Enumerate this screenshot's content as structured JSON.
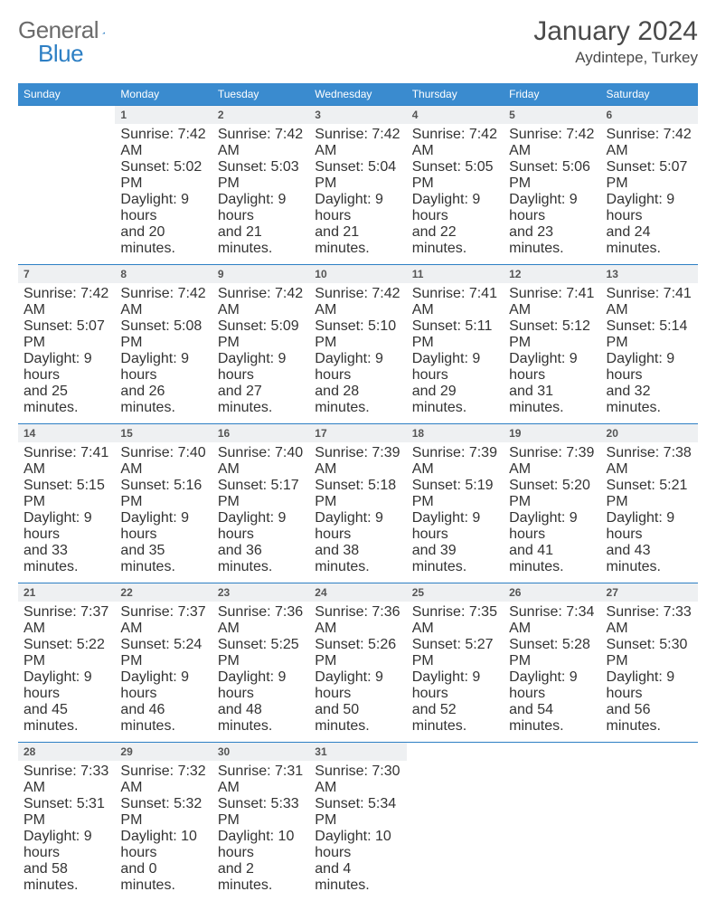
{
  "brand": {
    "part1": "General",
    "part2": "Blue"
  },
  "title": "January 2024",
  "location": "Aydintepe, Turkey",
  "colors": {
    "header_bg": "#3a8bcf",
    "header_text": "#ffffff",
    "daynum_bg": "#eef0f2",
    "border": "#2d7fc4",
    "text": "#333333",
    "logo_gray": "#6b6b6b",
    "logo_blue": "#2d7fc4"
  },
  "dayNames": [
    "Sunday",
    "Monday",
    "Tuesday",
    "Wednesday",
    "Thursday",
    "Friday",
    "Saturday"
  ],
  "weeks": [
    [
      null,
      {
        "n": "1",
        "sr": "Sunrise: 7:42 AM",
        "ss": "Sunset: 5:02 PM",
        "d1": "Daylight: 9 hours",
        "d2": "and 20 minutes."
      },
      {
        "n": "2",
        "sr": "Sunrise: 7:42 AM",
        "ss": "Sunset: 5:03 PM",
        "d1": "Daylight: 9 hours",
        "d2": "and 21 minutes."
      },
      {
        "n": "3",
        "sr": "Sunrise: 7:42 AM",
        "ss": "Sunset: 5:04 PM",
        "d1": "Daylight: 9 hours",
        "d2": "and 21 minutes."
      },
      {
        "n": "4",
        "sr": "Sunrise: 7:42 AM",
        "ss": "Sunset: 5:05 PM",
        "d1": "Daylight: 9 hours",
        "d2": "and 22 minutes."
      },
      {
        "n": "5",
        "sr": "Sunrise: 7:42 AM",
        "ss": "Sunset: 5:06 PM",
        "d1": "Daylight: 9 hours",
        "d2": "and 23 minutes."
      },
      {
        "n": "6",
        "sr": "Sunrise: 7:42 AM",
        "ss": "Sunset: 5:07 PM",
        "d1": "Daylight: 9 hours",
        "d2": "and 24 minutes."
      }
    ],
    [
      {
        "n": "7",
        "sr": "Sunrise: 7:42 AM",
        "ss": "Sunset: 5:07 PM",
        "d1": "Daylight: 9 hours",
        "d2": "and 25 minutes."
      },
      {
        "n": "8",
        "sr": "Sunrise: 7:42 AM",
        "ss": "Sunset: 5:08 PM",
        "d1": "Daylight: 9 hours",
        "d2": "and 26 minutes."
      },
      {
        "n": "9",
        "sr": "Sunrise: 7:42 AM",
        "ss": "Sunset: 5:09 PM",
        "d1": "Daylight: 9 hours",
        "d2": "and 27 minutes."
      },
      {
        "n": "10",
        "sr": "Sunrise: 7:42 AM",
        "ss": "Sunset: 5:10 PM",
        "d1": "Daylight: 9 hours",
        "d2": "and 28 minutes."
      },
      {
        "n": "11",
        "sr": "Sunrise: 7:41 AM",
        "ss": "Sunset: 5:11 PM",
        "d1": "Daylight: 9 hours",
        "d2": "and 29 minutes."
      },
      {
        "n": "12",
        "sr": "Sunrise: 7:41 AM",
        "ss": "Sunset: 5:12 PM",
        "d1": "Daylight: 9 hours",
        "d2": "and 31 minutes."
      },
      {
        "n": "13",
        "sr": "Sunrise: 7:41 AM",
        "ss": "Sunset: 5:14 PM",
        "d1": "Daylight: 9 hours",
        "d2": "and 32 minutes."
      }
    ],
    [
      {
        "n": "14",
        "sr": "Sunrise: 7:41 AM",
        "ss": "Sunset: 5:15 PM",
        "d1": "Daylight: 9 hours",
        "d2": "and 33 minutes."
      },
      {
        "n": "15",
        "sr": "Sunrise: 7:40 AM",
        "ss": "Sunset: 5:16 PM",
        "d1": "Daylight: 9 hours",
        "d2": "and 35 minutes."
      },
      {
        "n": "16",
        "sr": "Sunrise: 7:40 AM",
        "ss": "Sunset: 5:17 PM",
        "d1": "Daylight: 9 hours",
        "d2": "and 36 minutes."
      },
      {
        "n": "17",
        "sr": "Sunrise: 7:39 AM",
        "ss": "Sunset: 5:18 PM",
        "d1": "Daylight: 9 hours",
        "d2": "and 38 minutes."
      },
      {
        "n": "18",
        "sr": "Sunrise: 7:39 AM",
        "ss": "Sunset: 5:19 PM",
        "d1": "Daylight: 9 hours",
        "d2": "and 39 minutes."
      },
      {
        "n": "19",
        "sr": "Sunrise: 7:39 AM",
        "ss": "Sunset: 5:20 PM",
        "d1": "Daylight: 9 hours",
        "d2": "and 41 minutes."
      },
      {
        "n": "20",
        "sr": "Sunrise: 7:38 AM",
        "ss": "Sunset: 5:21 PM",
        "d1": "Daylight: 9 hours",
        "d2": "and 43 minutes."
      }
    ],
    [
      {
        "n": "21",
        "sr": "Sunrise: 7:37 AM",
        "ss": "Sunset: 5:22 PM",
        "d1": "Daylight: 9 hours",
        "d2": "and 45 minutes."
      },
      {
        "n": "22",
        "sr": "Sunrise: 7:37 AM",
        "ss": "Sunset: 5:24 PM",
        "d1": "Daylight: 9 hours",
        "d2": "and 46 minutes."
      },
      {
        "n": "23",
        "sr": "Sunrise: 7:36 AM",
        "ss": "Sunset: 5:25 PM",
        "d1": "Daylight: 9 hours",
        "d2": "and 48 minutes."
      },
      {
        "n": "24",
        "sr": "Sunrise: 7:36 AM",
        "ss": "Sunset: 5:26 PM",
        "d1": "Daylight: 9 hours",
        "d2": "and 50 minutes."
      },
      {
        "n": "25",
        "sr": "Sunrise: 7:35 AM",
        "ss": "Sunset: 5:27 PM",
        "d1": "Daylight: 9 hours",
        "d2": "and 52 minutes."
      },
      {
        "n": "26",
        "sr": "Sunrise: 7:34 AM",
        "ss": "Sunset: 5:28 PM",
        "d1": "Daylight: 9 hours",
        "d2": "and 54 minutes."
      },
      {
        "n": "27",
        "sr": "Sunrise: 7:33 AM",
        "ss": "Sunset: 5:30 PM",
        "d1": "Daylight: 9 hours",
        "d2": "and 56 minutes."
      }
    ],
    [
      {
        "n": "28",
        "sr": "Sunrise: 7:33 AM",
        "ss": "Sunset: 5:31 PM",
        "d1": "Daylight: 9 hours",
        "d2": "and 58 minutes."
      },
      {
        "n": "29",
        "sr": "Sunrise: 7:32 AM",
        "ss": "Sunset: 5:32 PM",
        "d1": "Daylight: 10 hours",
        "d2": "and 0 minutes."
      },
      {
        "n": "30",
        "sr": "Sunrise: 7:31 AM",
        "ss": "Sunset: 5:33 PM",
        "d1": "Daylight: 10 hours",
        "d2": "and 2 minutes."
      },
      {
        "n": "31",
        "sr": "Sunrise: 7:30 AM",
        "ss": "Sunset: 5:34 PM",
        "d1": "Daylight: 10 hours",
        "d2": "and 4 minutes."
      },
      null,
      null,
      null
    ]
  ]
}
